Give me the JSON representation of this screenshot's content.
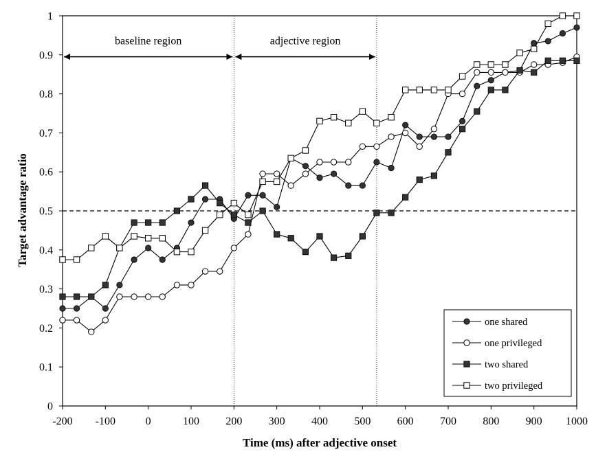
{
  "chart_data": {
    "type": "line",
    "title": "",
    "xlabel": "Time (ms) after adjective onset",
    "ylabel": "Target advantage ratio",
    "xlim": [
      -200,
      1000
    ],
    "ylim": [
      0,
      1
    ],
    "x_ticks": [
      -200,
      -100,
      0,
      100,
      200,
      300,
      400,
      500,
      600,
      700,
      800,
      900,
      1000
    ],
    "y_ticks": [
      0,
      0.1,
      0.2,
      0.3,
      0.4,
      0.5,
      0.6,
      0.7,
      0.8,
      0.9,
      1
    ],
    "grid": false,
    "legend_position": "bottom-right",
    "reference_line": {
      "y": 0.5,
      "style": "dashed"
    },
    "vertical_markers": [
      200,
      533
    ],
    "regions": [
      {
        "label": "baseline region",
        "x_start": -200,
        "x_end": 200,
        "y": 0.895
      },
      {
        "label": "adjective region",
        "x_start": 200,
        "x_end": 533,
        "y": 0.895
      }
    ],
    "x": [
      -200,
      -167,
      -133,
      -100,
      -67,
      -33,
      0,
      33,
      67,
      100,
      133,
      167,
      200,
      233,
      267,
      300,
      333,
      367,
      400,
      433,
      467,
      500,
      533,
      567,
      600,
      633,
      667,
      700,
      733,
      767,
      800,
      833,
      867,
      900,
      933,
      967,
      1000
    ],
    "series": [
      {
        "name": "one shared",
        "marker": "filled-circle",
        "values": [
          0.25,
          0.25,
          0.28,
          0.25,
          0.31,
          0.375,
          0.405,
          0.375,
          0.405,
          0.47,
          0.53,
          0.53,
          0.48,
          0.54,
          0.54,
          0.51,
          0.635,
          0.615,
          0.585,
          0.595,
          0.565,
          0.565,
          0.625,
          0.61,
          0.72,
          0.69,
          0.69,
          0.69,
          0.73,
          0.82,
          0.835,
          0.855,
          0.86,
          0.93,
          0.935,
          0.955,
          0.97
        ]
      },
      {
        "name": "one privileged",
        "marker": "open-circle",
        "values": [
          0.22,
          0.22,
          0.19,
          0.22,
          0.28,
          0.28,
          0.28,
          0.28,
          0.31,
          0.31,
          0.345,
          0.345,
          0.405,
          0.44,
          0.595,
          0.595,
          0.565,
          0.595,
          0.625,
          0.625,
          0.625,
          0.665,
          0.665,
          0.69,
          0.7,
          0.665,
          0.71,
          0.8,
          0.8,
          0.855,
          0.855,
          0.855,
          0.855,
          0.875,
          0.875,
          0.88,
          0.895
        ]
      },
      {
        "name": "two shared",
        "marker": "filled-square",
        "values": [
          0.28,
          0.28,
          0.28,
          0.31,
          0.405,
          0.47,
          0.47,
          0.47,
          0.5,
          0.53,
          0.565,
          0.52,
          0.49,
          0.47,
          0.5,
          0.44,
          0.43,
          0.395,
          0.435,
          0.38,
          0.385,
          0.435,
          0.495,
          0.495,
          0.535,
          0.58,
          0.59,
          0.65,
          0.71,
          0.755,
          0.81,
          0.81,
          0.86,
          0.855,
          0.885,
          0.885,
          0.885
        ]
      },
      {
        "name": "two privileged",
        "marker": "open-square",
        "values": [
          0.375,
          0.375,
          0.405,
          0.435,
          0.405,
          0.435,
          0.43,
          0.43,
          0.395,
          0.395,
          0.45,
          0.49,
          0.52,
          0.49,
          0.575,
          0.575,
          0.635,
          0.655,
          0.73,
          0.74,
          0.725,
          0.755,
          0.725,
          0.74,
          0.81,
          0.81,
          0.81,
          0.81,
          0.845,
          0.875,
          0.875,
          0.875,
          0.905,
          0.915,
          0.98,
          1.0,
          1.0
        ]
      }
    ]
  }
}
